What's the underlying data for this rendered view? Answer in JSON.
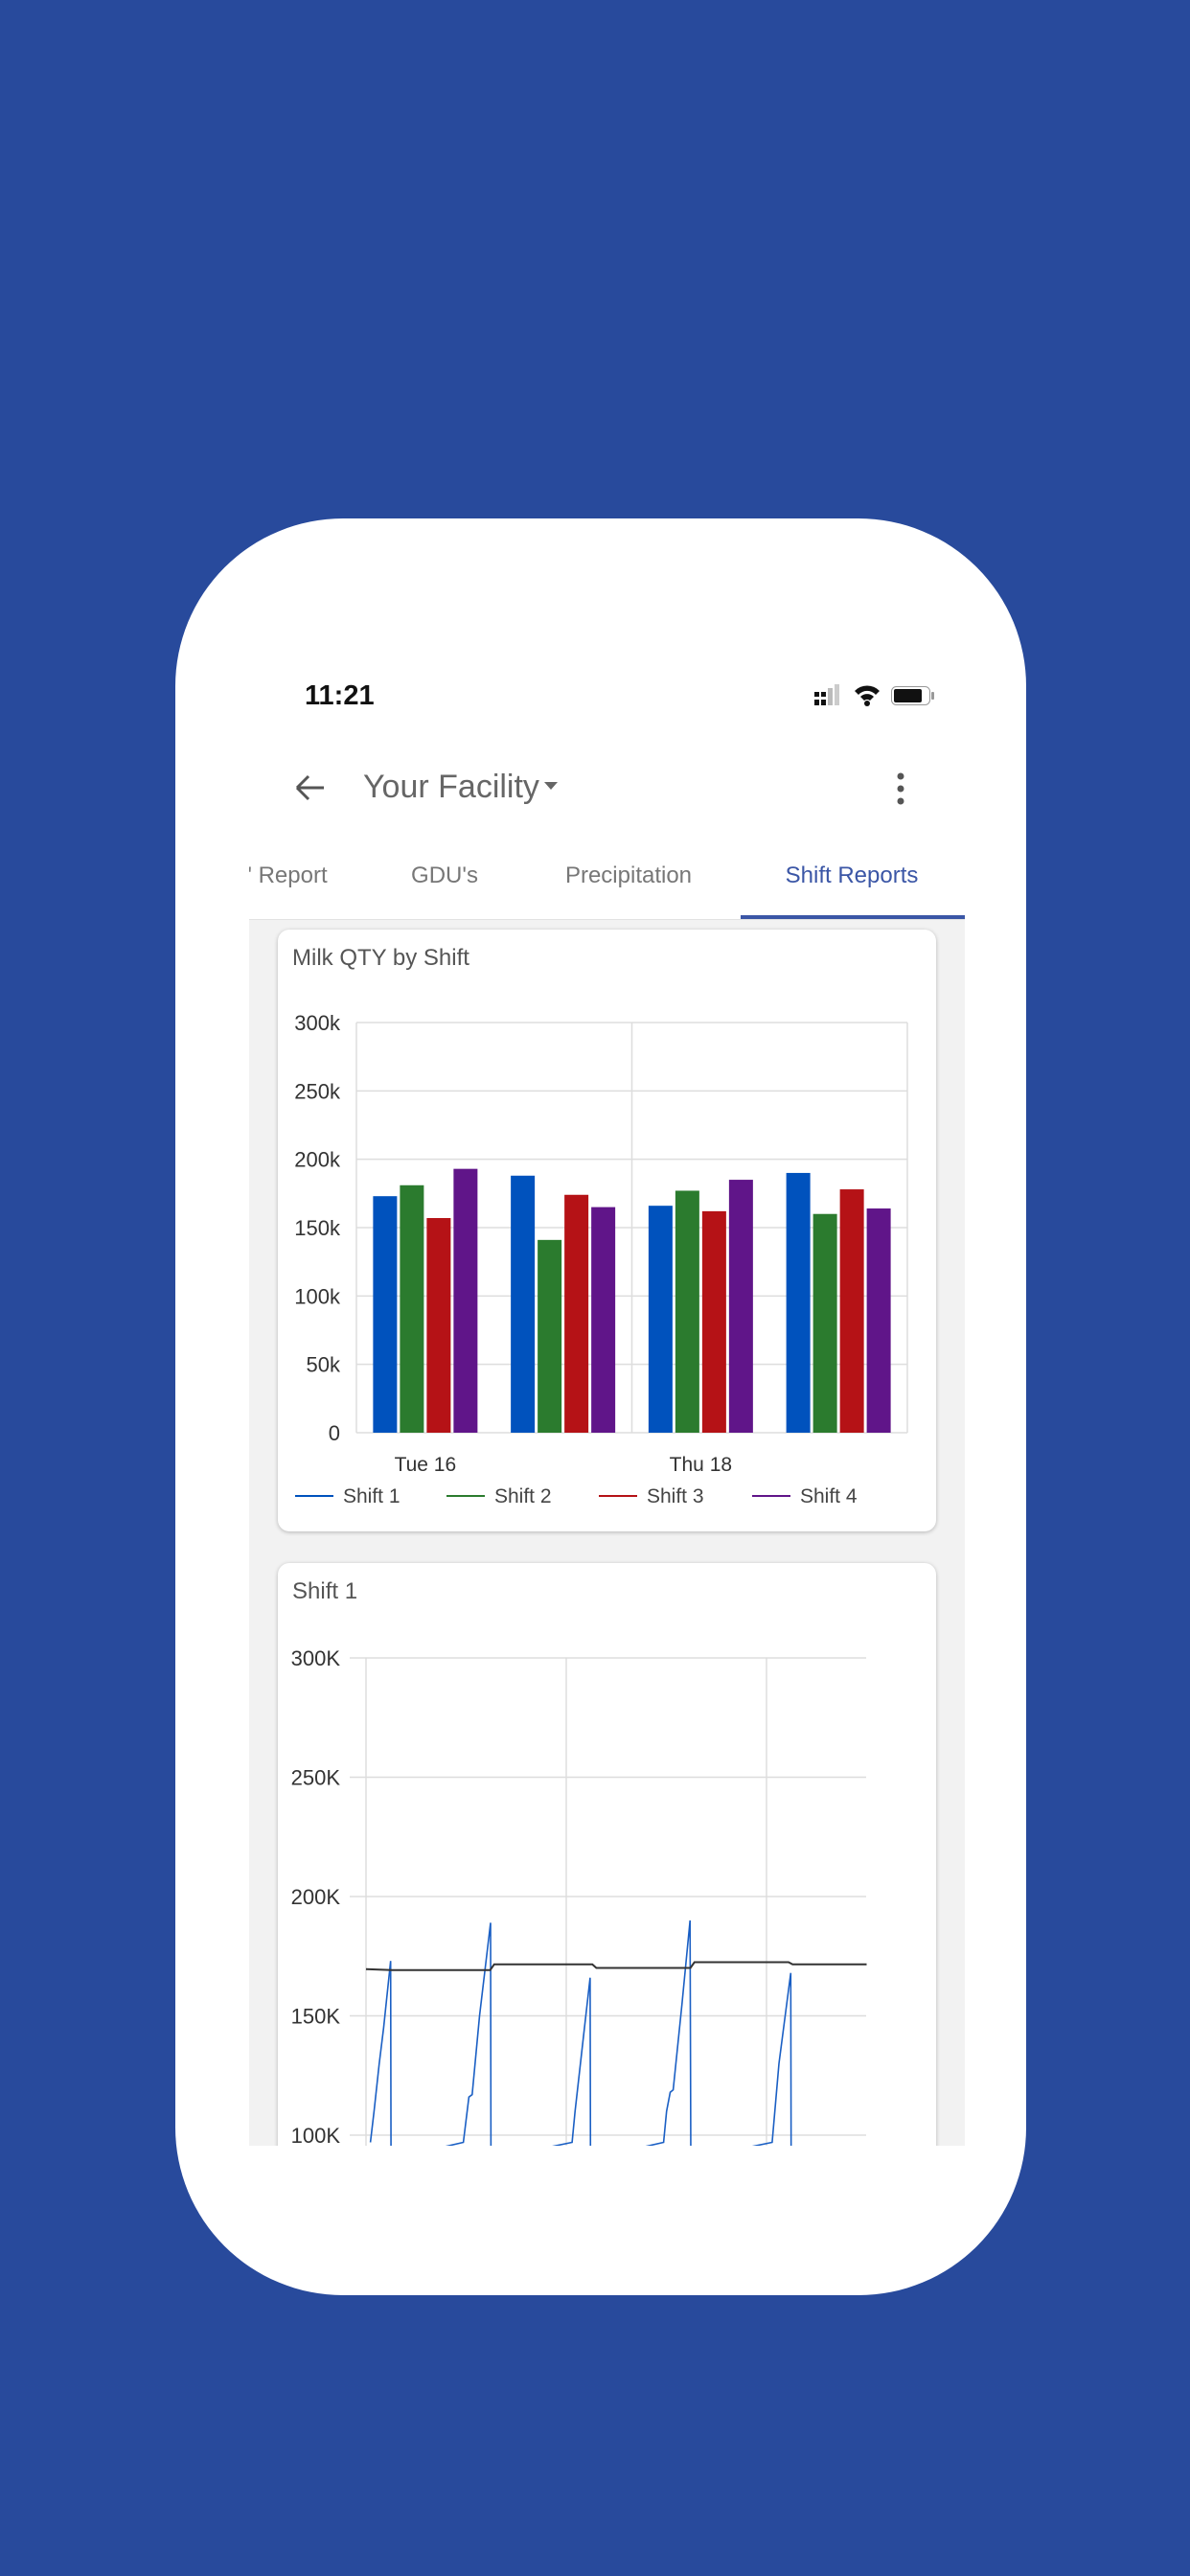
{
  "status_bar": {
    "time": "11:21",
    "icons": [
      "signal-icon",
      "wifi-icon",
      "battery-icon"
    ]
  },
  "app_bar": {
    "title": "Your Facility",
    "back_icon": "arrow-left-icon",
    "dropdown_icon": "caret-down-icon",
    "menu_icon": "more-vertical-icon"
  },
  "tabs": [
    {
      "label": "' Report",
      "active": false
    },
    {
      "label": "GDU's",
      "active": false
    },
    {
      "label": "Precipitation",
      "active": false
    },
    {
      "label": "Shift Reports",
      "active": true
    }
  ],
  "colors": {
    "background": "#284a9c",
    "accent": "#3b56a6",
    "shift1": "#0052bd",
    "shift2": "#2b7b2e",
    "shift3": "#b51216",
    "shift4": "#601589",
    "trend": "#333333"
  },
  "chart_data": [
    {
      "type": "bar",
      "title": "Milk QTY by Shift",
      "categories": [
        "Tue 16",
        "",
        "Thu 18",
        ""
      ],
      "ylim": [
        0,
        300000
      ],
      "yticks": [
        "0",
        "50k",
        "100k",
        "150k",
        "200k",
        "250k",
        "300k"
      ],
      "grid": true,
      "legend": "bottom",
      "series": [
        {
          "name": "Shift 1",
          "color": "#0052bd",
          "values": [
            173000,
            188000,
            166000,
            190000
          ]
        },
        {
          "name": "Shift 2",
          "color": "#2b7b2e",
          "values": [
            181000,
            141000,
            177000,
            160000
          ]
        },
        {
          "name": "Shift 3",
          "color": "#b51216",
          "values": [
            157000,
            174000,
            162000,
            178000
          ]
        },
        {
          "name": "Shift 4",
          "color": "#601589",
          "values": [
            193000,
            165000,
            185000,
            164000
          ]
        }
      ]
    },
    {
      "type": "line",
      "title": "Shift 1",
      "ylim": [
        0,
        300000
      ],
      "yticks": [
        "100K",
        "150K",
        "200K",
        "250K",
        "300K"
      ],
      "grid": true,
      "series": [
        {
          "color": "#1a5fc4",
          "points": [
            [
              0.022,
              97000
            ],
            [
              0.04,
              110000
            ],
            [
              0.066,
              130000
            ],
            [
              0.088,
              145000
            ],
            [
              0.123,
              173000
            ],
            [
              0.125,
              90000
            ],
            [
              0.486,
              97000
            ],
            [
              0.514,
              116000
            ],
            [
              0.53,
              117000
            ],
            [
              0.567,
              150000
            ],
            [
              0.622,
              189000
            ],
            [
              0.624,
              90000
            ],
            [
              1.029,
              97000
            ],
            [
              1.044,
              110000
            ],
            [
              1.084,
              140000
            ],
            [
              1.119,
              166000
            ],
            [
              1.121,
              90000
            ],
            [
              1.486,
              97000
            ],
            [
              1.501,
              110000
            ],
            [
              1.519,
              118000
            ],
            [
              1.534,
              119000
            ],
            [
              1.578,
              155000
            ],
            [
              1.618,
              190000
            ],
            [
              1.622,
              90000
            ],
            [
              2.028,
              97000
            ],
            [
              2.062,
              130000
            ],
            [
              2.121,
              168000
            ],
            [
              2.123,
              90000
            ]
          ]
        },
        {
          "color": "#333333",
          "points": [
            [
              0,
              169600
            ],
            [
              0.13,
              169200
            ],
            [
              0.62,
              169200
            ],
            [
              0.64,
              171600
            ],
            [
              1.13,
              171600
            ],
            [
              1.15,
              170100
            ],
            [
              1.62,
              170100
            ],
            [
              1.64,
              172500
            ],
            [
              2.11,
              172500
            ],
            [
              2.13,
              171600
            ],
            [
              2.5,
              171600
            ]
          ]
        }
      ]
    }
  ]
}
